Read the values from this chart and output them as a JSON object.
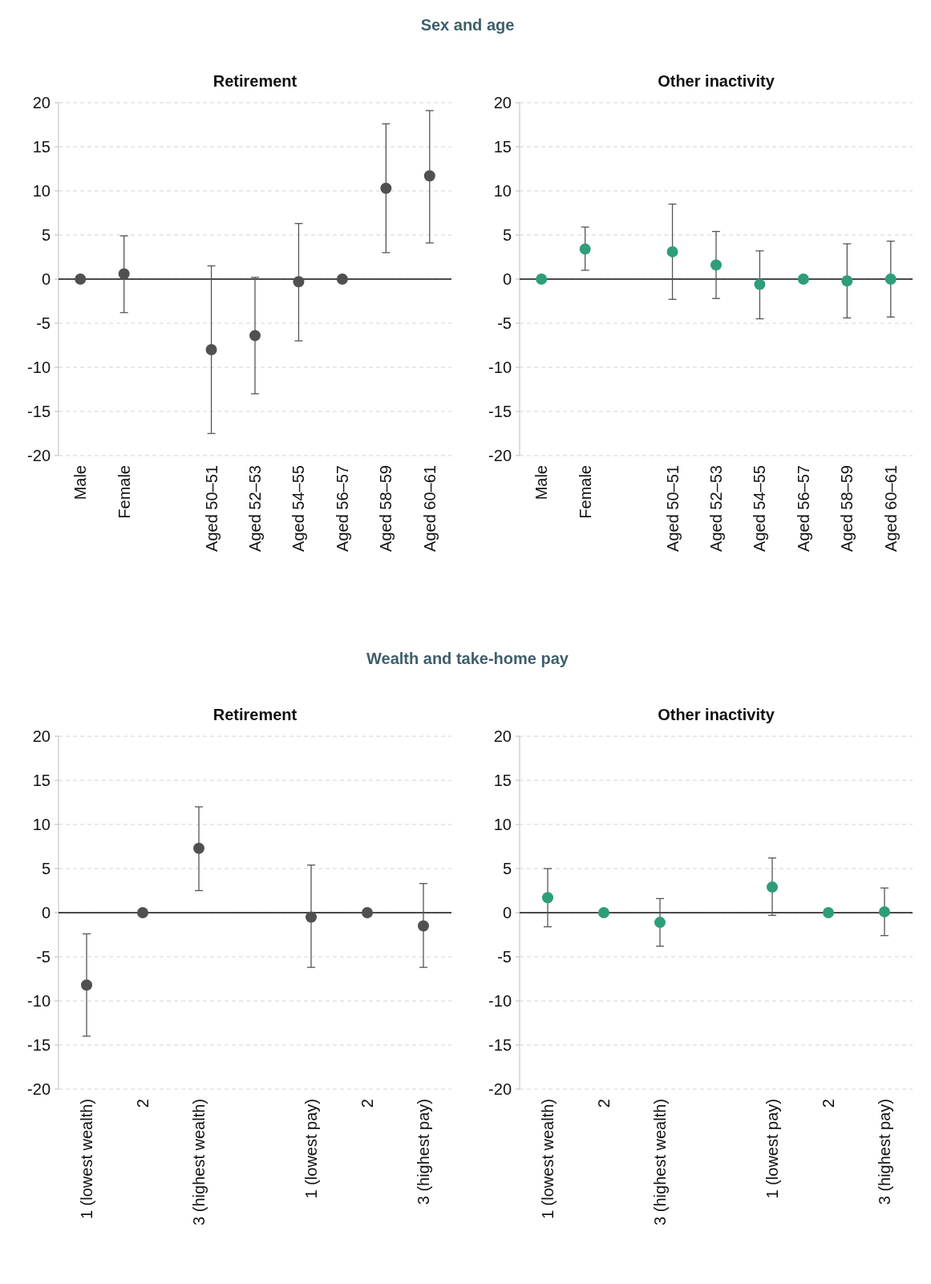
{
  "chart_data": [
    {
      "type": "scatter",
      "title": "Retirement",
      "annotations": [
        "Sex and age"
      ],
      "categories": [
        "Male",
        "Female",
        null,
        "Aged 50–51",
        "Aged 52–53",
        "Aged 54–55",
        "Aged 56–57",
        "Aged 58–59",
        "Aged 60–61"
      ],
      "series": [
        {
          "color": "#505050",
          "values": [
            0,
            0.6,
            null,
            -8.0,
            -6.4,
            -0.3,
            0,
            10.3,
            11.7
          ],
          "errors": [
            null,
            [
              -3.8,
              4.9
            ],
            null,
            [
              -17.5,
              1.5
            ],
            [
              -13.0,
              0.2
            ],
            [
              -7.0,
              6.3
            ],
            null,
            [
              3.0,
              17.6
            ],
            [
              4.1,
              19.1
            ]
          ]
        }
      ],
      "ylim": [
        -20,
        20
      ],
      "yticks": [
        -20,
        -15,
        -10,
        -5,
        0,
        5,
        10,
        15,
        20
      ],
      "grid": "y",
      "marker": "circle"
    },
    {
      "type": "scatter",
      "title": "Other inactivity",
      "categories": [
        "Male",
        "Female",
        null,
        "Aged 50–51",
        "Aged 52–53",
        "Aged 54–55",
        "Aged 56–57",
        "Aged 58–59",
        "Aged 60–61"
      ],
      "series": [
        {
          "color": "#2e9e78",
          "values": [
            0,
            3.4,
            null,
            3.1,
            1.6,
            -0.6,
            0,
            -0.2,
            0.0
          ],
          "errors": [
            null,
            [
              1.0,
              5.9
            ],
            null,
            [
              -2.3,
              8.5
            ],
            [
              -2.2,
              5.4
            ],
            [
              -4.5,
              3.2
            ],
            null,
            [
              -4.4,
              4.0
            ],
            [
              -4.3,
              4.3
            ]
          ]
        }
      ],
      "ylim": [
        -20,
        20
      ],
      "yticks": [
        -20,
        -15,
        -10,
        -5,
        0,
        5,
        10,
        15,
        20
      ],
      "grid": "y",
      "marker": "circle"
    },
    {
      "type": "scatter",
      "title": "Retirement",
      "annotations": [
        "Wealth and take-home pay"
      ],
      "categories": [
        "1 (lowest wealth)",
        "2",
        "3 (highest wealth)",
        null,
        "1 (lowest pay)",
        "2",
        "3 (highest pay)"
      ],
      "series": [
        {
          "color": "#505050",
          "values": [
            -8.2,
            0,
            7.3,
            null,
            -0.5,
            0,
            -1.5
          ],
          "errors": [
            [
              -14.0,
              -2.4
            ],
            null,
            [
              2.5,
              12.0
            ],
            null,
            [
              -6.2,
              5.4
            ],
            null,
            [
              -6.2,
              3.3
            ]
          ]
        }
      ],
      "ylim": [
        -20,
        20
      ],
      "yticks": [
        -20,
        -15,
        -10,
        -5,
        0,
        5,
        10,
        15,
        20
      ],
      "grid": "y",
      "marker": "circle"
    },
    {
      "type": "scatter",
      "title": "Other inactivity",
      "categories": [
        "1 (lowest wealth)",
        "2",
        "3 (highest wealth)",
        null,
        "1 (lowest pay)",
        "2",
        "3 (highest pay)"
      ],
      "series": [
        {
          "color": "#2e9e78",
          "values": [
            1.7,
            0,
            -1.1,
            null,
            2.9,
            0,
            0.1
          ],
          "errors": [
            [
              -1.6,
              5.0
            ],
            null,
            [
              -3.8,
              1.6
            ],
            null,
            [
              -0.3,
              6.2
            ],
            null,
            [
              -2.6,
              2.8
            ]
          ]
        }
      ],
      "ylim": [
        -20,
        20
      ],
      "yticks": [
        -20,
        -15,
        -10,
        -5,
        0,
        5,
        10,
        15,
        20
      ],
      "grid": "y",
      "marker": "circle"
    }
  ]
}
